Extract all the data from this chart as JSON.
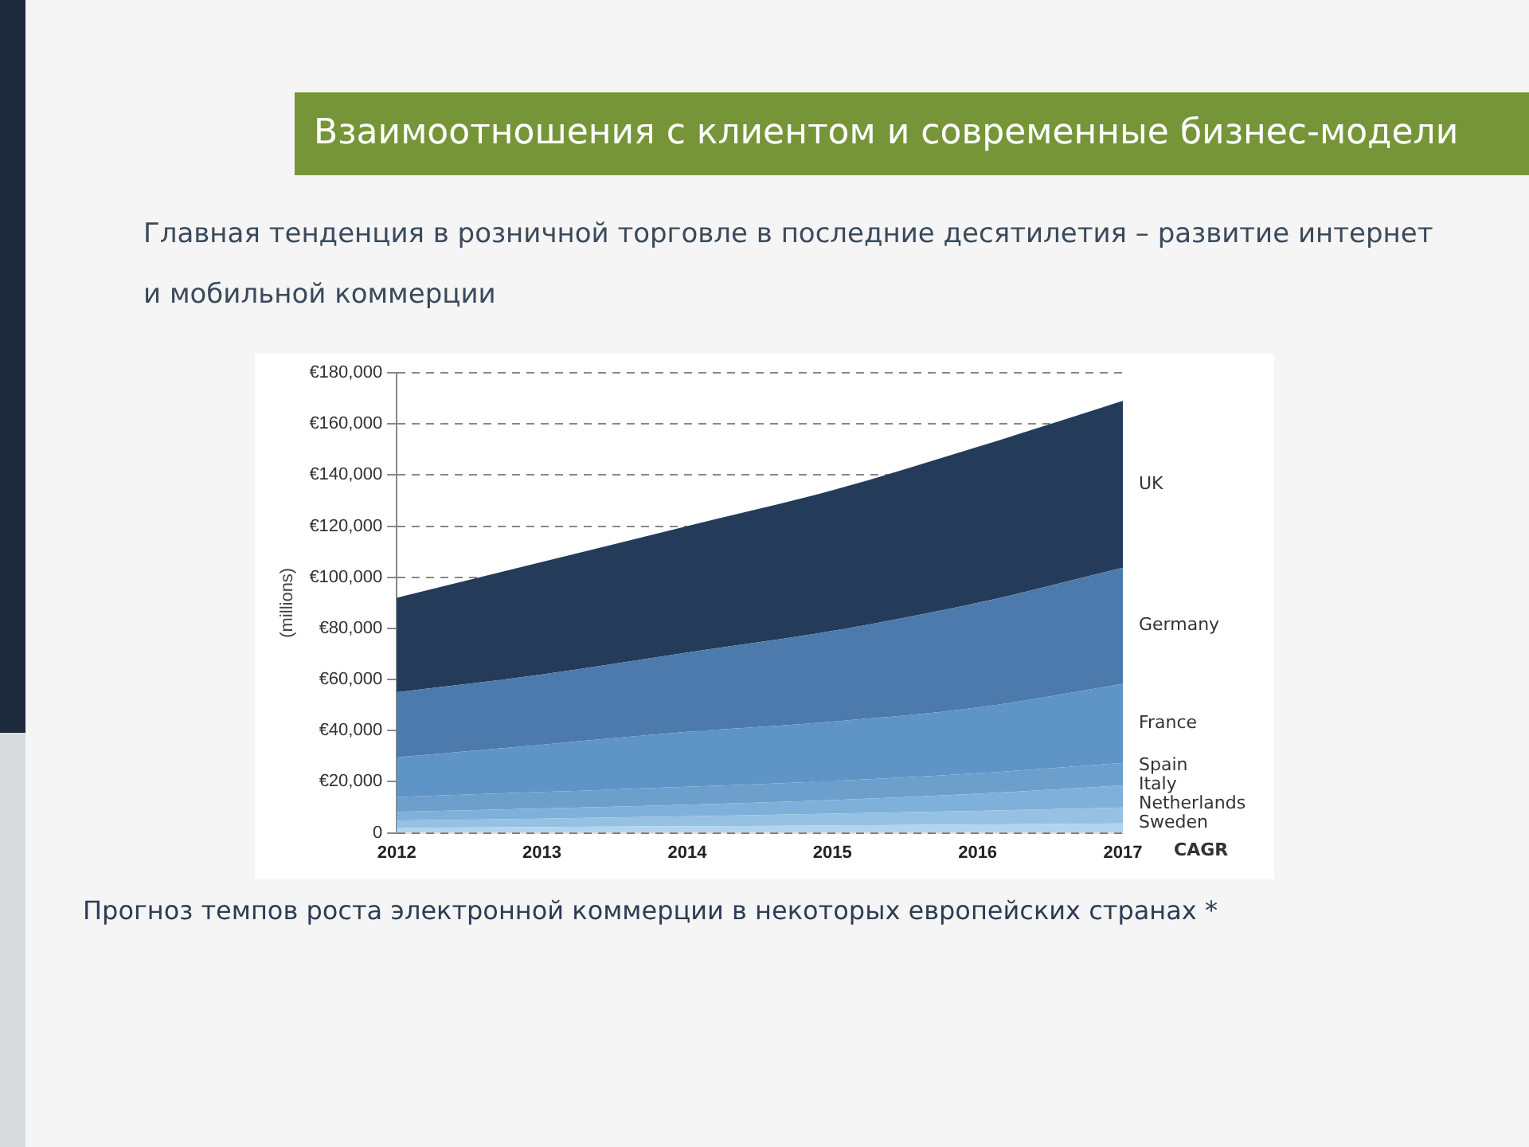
{
  "chart_data": {
    "type": "area",
    "title": "Взаимоотношения с клиентом и современные бизнес-модели",
    "subtitle": "Главная тенденция в розничной торговле в последние десятилетия – развитие интернет и мобильной коммерции",
    "ylabel": "(millions)",
    "categories": [
      "2012",
      "2013",
      "2014",
      "2015",
      "2016",
      "2017"
    ],
    "stacked": true,
    "series": [
      {
        "name": "Sweden",
        "color": "#b3d4ee",
        "values": [
          2000,
          2300,
          2600,
          2900,
          3300,
          3700
        ]
      },
      {
        "name": "Netherlands",
        "color": "#95c1e3",
        "values": [
          2800,
          3300,
          3900,
          4600,
          5300,
          6200
        ]
      },
      {
        "name": "Italy",
        "color": "#7fb0da",
        "values": [
          3400,
          3900,
          4500,
          5300,
          6700,
          8700
        ]
      },
      {
        "name": "Spain",
        "color": "#6d9fcd",
        "values": [
          5800,
          6500,
          7000,
          7500,
          8000,
          8800
        ]
      },
      {
        "name": "France",
        "color": "#5f94c6",
        "values": [
          15500,
          18500,
          21500,
          23200,
          25700,
          30900
        ]
      },
      {
        "name": "Germany",
        "color": "#4d7aac",
        "values": [
          25500,
          27500,
          31000,
          35500,
          41000,
          45400
        ]
      },
      {
        "name": "UK",
        "color": "#243c5a",
        "values": [
          37000,
          44000,
          49500,
          55000,
          61000,
          65300
        ]
      }
    ],
    "ylim": [
      0,
      180000
    ],
    "yticks": [
      0,
      {
        "value": 20000,
        "label": "€20,000"
      },
      {
        "value": 40000,
        "label": "€40,000"
      },
      {
        "value": 60000,
        "label": "€60,000"
      },
      {
        "value": 80000,
        "label": "€80,000"
      },
      {
        "value": 100000,
        "label": "€100,000"
      },
      {
        "value": 120000,
        "label": "€120,000"
      },
      {
        "value": 140000,
        "label": "€140,000"
      },
      {
        "value": 160000,
        "label": "€160,000"
      },
      {
        "value": 180000,
        "label": "€180,000"
      }
    ],
    "grid": "y",
    "annotations": [
      "CAGR",
      "Прогноз темпов роста электронной коммерции в некоторых европейских странах *"
    ]
  }
}
